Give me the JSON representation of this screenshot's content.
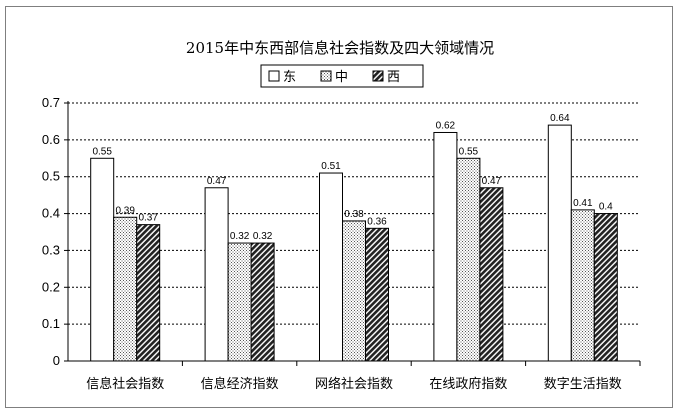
{
  "chart_data": {
    "type": "bar",
    "title": "2015年中东西部信息社会指数及四大领域情况",
    "categories": [
      "信息社会指数",
      "信息经济指数",
      "网络社会指数",
      "在线政府指数",
      "数字生活指数"
    ],
    "series": [
      {
        "name": "东",
        "values": [
          0.55,
          0.47,
          0.51,
          0.62,
          0.64
        ],
        "labels": [
          "0.55",
          "0.47",
          "0.51",
          "0.62",
          "0.64"
        ],
        "pattern": "white"
      },
      {
        "name": "中",
        "values": [
          0.39,
          0.32,
          0.38,
          0.55,
          0.41
        ],
        "labels": [
          "0.39",
          "0.32",
          "0.38",
          "0.55",
          "0.41"
        ],
        "pattern": "dots"
      },
      {
        "name": "西",
        "values": [
          0.37,
          0.32,
          0.36,
          0.47,
          0.4
        ],
        "labels": [
          "0.37",
          "0.32",
          "0.36",
          "0.47",
          "0.4"
        ],
        "pattern": "diagonal"
      }
    ],
    "ylim": [
      0,
      0.7
    ],
    "yticks": [
      "0",
      "0.1",
      "0.2",
      "0.3",
      "0.4",
      "0.5",
      "0.6",
      "0.7"
    ],
    "grid": true,
    "legend": "top-right"
  }
}
